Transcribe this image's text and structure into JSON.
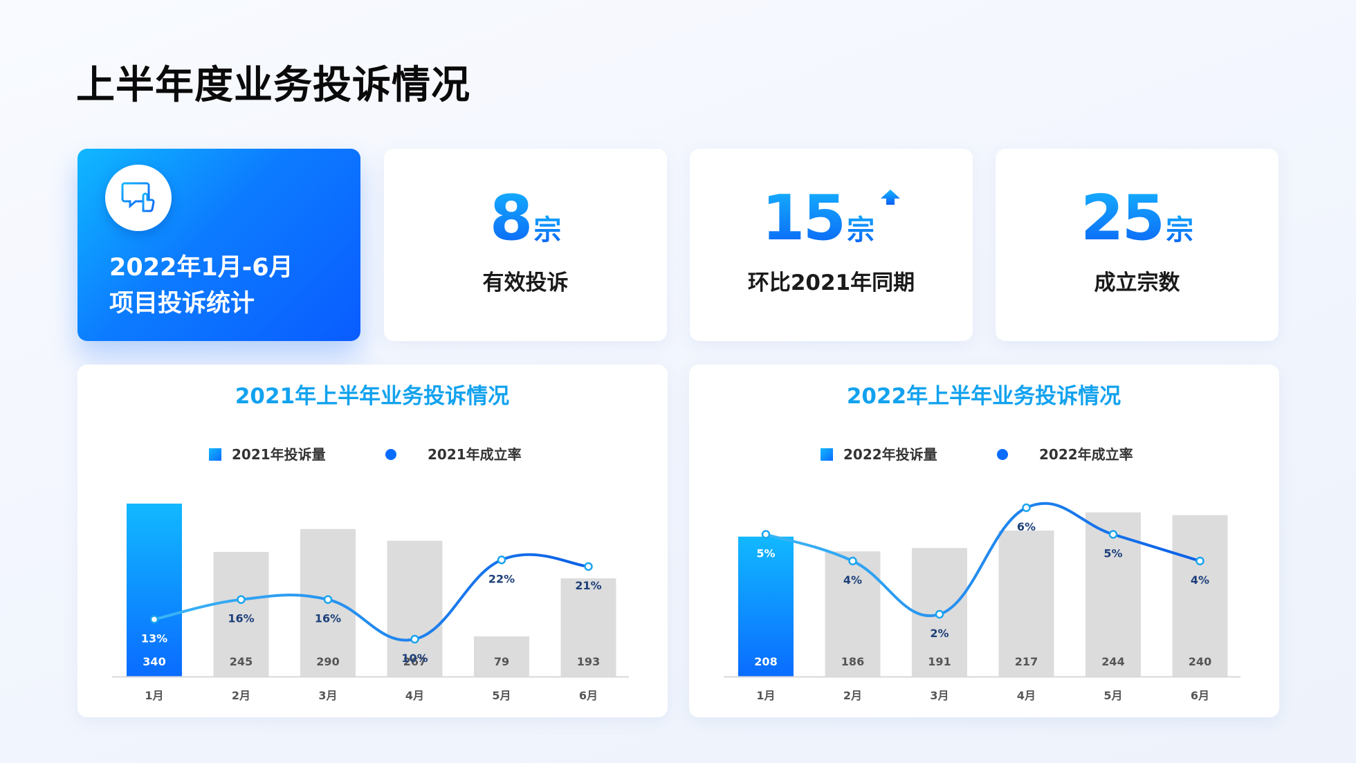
{
  "page": {
    "title": "上半年度业务投诉情况"
  },
  "hero": {
    "line1": "2022年1月-6月",
    "line2": "项目投诉统计",
    "icon": "complaint-chat-icon"
  },
  "stats": [
    {
      "value": "8",
      "unit": "宗",
      "label": "有效投诉"
    },
    {
      "value": "15",
      "unit": "宗",
      "label": "环比2021年同期",
      "trend_icon": "arrow-up-icon"
    },
    {
      "value": "25",
      "unit": "宗",
      "label": "成立宗数"
    }
  ],
  "colors": {
    "accent": "#0a6cff",
    "accent_light": "#12b8ff",
    "bar_gray": "#dcdcdc",
    "line": "#0a74ef",
    "point_label": "#1d3f7a"
  },
  "chart_data": [
    {
      "type": "bar",
      "title": "2021年上半年业务投诉情况",
      "categories": [
        "1月",
        "2月",
        "3月",
        "4月",
        "5月",
        "6月"
      ],
      "series": [
        {
          "name": "2021年投诉量",
          "type": "bar",
          "values": [
            340,
            245,
            290,
            267,
            79,
            193
          ]
        },
        {
          "name": "2021年成立率",
          "type": "line",
          "values": [
            13,
            16,
            16,
            10,
            22,
            21
          ],
          "unit": "%"
        }
      ],
      "highlight_index": 0,
      "legend": "top-center",
      "grid": false
    },
    {
      "type": "bar",
      "title": "2022年上半年业务投诉情况",
      "categories": [
        "1月",
        "2月",
        "3月",
        "4月",
        "5月",
        "6月"
      ],
      "series": [
        {
          "name": "2022年投诉量",
          "type": "bar",
          "values": [
            208,
            186,
            191,
            217,
            244,
            240
          ]
        },
        {
          "name": "2022年成立率",
          "type": "line",
          "values": [
            5,
            4,
            2,
            6,
            5,
            4
          ],
          "unit": "%"
        }
      ],
      "highlight_index": 0,
      "legend": "top-center",
      "grid": false
    }
  ]
}
